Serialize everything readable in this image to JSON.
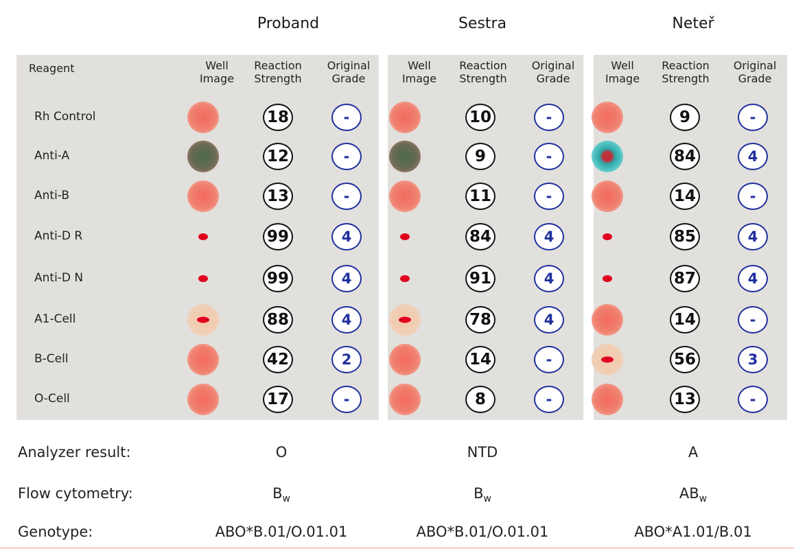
{
  "reagent_header": "Reagent",
  "col_headers": {
    "well_image": [
      "Well",
      "Image"
    ],
    "reaction_strength": [
      "Reaction",
      "Strength"
    ],
    "original_grade": [
      "Original",
      "Grade"
    ]
  },
  "reagents": [
    "Rh Control",
    "Anti-A",
    "Anti-B",
    "Anti-D R",
    "Anti-D N",
    "A1-Cell",
    "B-Cell",
    "O-Cell"
  ],
  "panels": [
    {
      "title": "Proband",
      "strengths": [
        "18",
        "12",
        "13",
        "99",
        "99",
        "88",
        "42",
        "17"
      ],
      "grades": [
        "-",
        "-",
        "-",
        "4",
        "4",
        "4",
        "2",
        "-"
      ],
      "wells": [
        "diffuse-red",
        "diffuse-green",
        "diffuse-red",
        "small-dot",
        "small-dot",
        "pale-dot",
        "diffuse-red",
        "diffuse-red"
      ],
      "analyzer_result": "O",
      "flow_main": "B",
      "flow_sub": "w",
      "genotype": "ABO*B.01/O.01.01"
    },
    {
      "title": "Sestra",
      "strengths": [
        "10",
        "9",
        "11",
        "84",
        "91",
        "78",
        "14",
        "8"
      ],
      "grades": [
        "-",
        "-",
        "-",
        "4",
        "4",
        "4",
        "-",
        "-"
      ],
      "wells": [
        "diffuse-red",
        "diffuse-green",
        "diffuse-red",
        "small-dot",
        "small-dot",
        "pale-dot",
        "diffuse-red",
        "diffuse-red"
      ],
      "analyzer_result": "NTD",
      "flow_main": "B",
      "flow_sub": "w",
      "genotype": "ABO*B.01/O.01.01"
    },
    {
      "title": "Neteř",
      "strengths": [
        "9",
        "84",
        "14",
        "85",
        "87",
        "14",
        "56",
        "13"
      ],
      "grades": [
        "-",
        "4",
        "-",
        "4",
        "4",
        "-",
        "3",
        "-"
      ],
      "wells": [
        "diffuse-red",
        "teal-ring",
        "diffuse-red",
        "small-dot",
        "small-dot",
        "diffuse-red",
        "pale-dot",
        "diffuse-red"
      ],
      "analyzer_result": "A",
      "flow_main": "AB",
      "flow_sub": "w",
      "genotype": "ABO*A1.01/B.01"
    }
  ],
  "footer_labels": {
    "analyzer": "Analyzer result:",
    "flow": "Flow cytometry:",
    "genotype": "Genotype:"
  },
  "colors": {
    "panel_bg": "#e2e0dd",
    "grade_circle": "#1f2f9e",
    "strength_circle": "#111111",
    "agglutinate": "#e0001e"
  }
}
